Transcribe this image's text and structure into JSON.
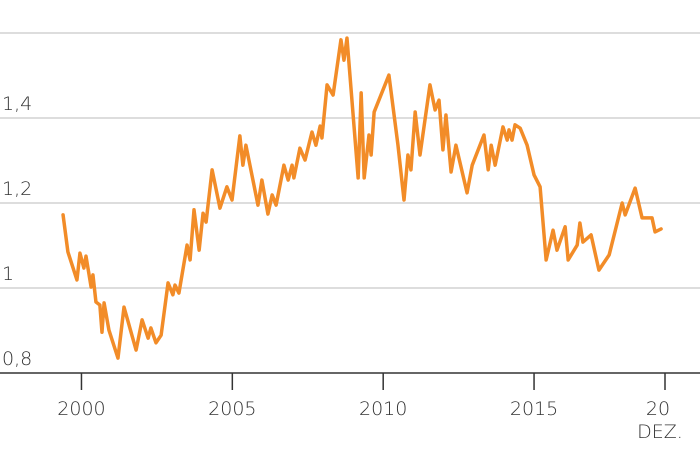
{
  "chart_data": {
    "type": "line",
    "x": [
      1999.39,
      1999.55,
      1999.85,
      1999.95,
      2000.08,
      2000.15,
      2000.32,
      2000.38,
      2000.48,
      2000.61,
      2000.68,
      2000.75,
      2000.91,
      2001.21,
      2001.41,
      2001.81,
      2002.01,
      2002.21,
      2002.3,
      2002.47,
      2002.64,
      2002.87,
      2003.03,
      2003.1,
      2003.23,
      2003.5,
      2003.6,
      2003.73,
      2003.9,
      2004.03,
      2004.13,
      2004.33,
      2004.59,
      2004.82,
      2004.99,
      2005.25,
      2005.35,
      2005.45,
      2005.85,
      2005.98,
      2006.18,
      2006.32,
      2006.45,
      2006.71,
      2006.85,
      2006.98,
      2007.04,
      2007.24,
      2007.41,
      2007.64,
      2007.77,
      2007.91,
      2007.97,
      2008.14,
      2008.34,
      2008.6,
      2008.7,
      2008.8,
      2009.17,
      2009.27,
      2009.37,
      2009.53,
      2009.6,
      2009.7,
      2010.19,
      2010.49,
      2010.69,
      2010.82,
      2010.92,
      2011.06,
      2011.22,
      2011.55,
      2011.72,
      2011.85,
      2011.98,
      2012.08,
      2012.25,
      2012.41,
      2012.78,
      2012.95,
      2013.34,
      2013.48,
      2013.58,
      2013.71,
      2013.97,
      2014.11,
      2014.17,
      2014.27,
      2014.37,
      2014.54,
      2014.77,
      2015.0,
      2015.2,
      2015.4,
      2015.63,
      2015.76,
      2016.03,
      2016.13,
      2016.43,
      2016.52,
      2016.62,
      2016.89,
      2017.15,
      2017.49,
      2017.92,
      2018.02,
      2018.35,
      2018.58,
      2018.91,
      2019.01,
      2019.21
    ],
    "series": [
      {
        "color": "#f28c28",
        "values": [
          1.172,
          1.085,
          1.019,
          1.082,
          1.047,
          1.075,
          1.002,
          1.031,
          0.967,
          0.96,
          0.896,
          0.965,
          0.901,
          0.835,
          0.955,
          0.854,
          0.925,
          0.882,
          0.906,
          0.871,
          0.889,
          1.012,
          0.984,
          1.007,
          0.988,
          1.101,
          1.066,
          1.184,
          1.089,
          1.176,
          1.155,
          1.278,
          1.188,
          1.238,
          1.207,
          1.358,
          1.289,
          1.336,
          1.195,
          1.254,
          1.174,
          1.219,
          1.195,
          1.289,
          1.254,
          1.289,
          1.259,
          1.329,
          1.301,
          1.367,
          1.336,
          1.381,
          1.353,
          1.478,
          1.454,
          1.584,
          1.536,
          1.588,
          1.259,
          1.459,
          1.259,
          1.36,
          1.313,
          1.414,
          1.501,
          1.336,
          1.207,
          1.313,
          1.278,
          1.414,
          1.313,
          1.478,
          1.419,
          1.442,
          1.325,
          1.407,
          1.273,
          1.336,
          1.224,
          1.289,
          1.36,
          1.278,
          1.336,
          1.289,
          1.379,
          1.348,
          1.372,
          1.348,
          1.384,
          1.376,
          1.336,
          1.266,
          1.238,
          1.066,
          1.136,
          1.089,
          1.144,
          1.066,
          1.101,
          1.153,
          1.108,
          1.125,
          1.042,
          1.078,
          1.2,
          1.172,
          1.235,
          1.165,
          1.165,
          1.132,
          1.139
        ]
      }
    ],
    "xlim": [
      1997.3,
      2020.5
    ],
    "xticks": [
      2000,
      2005,
      2010,
      2015,
      {
        "value": 2019.34,
        "label": "20"
      }
    ],
    "x_annotation": "DEZ.",
    "ylim": [
      0.8,
      1.6
    ],
    "yticks": [
      {
        "value": 0.8,
        "label": "0,8"
      },
      1,
      {
        "value": 1.2,
        "label": "1,2"
      },
      {
        "value": 1.4,
        "label": "1,4"
      }
    ],
    "grid": true
  }
}
